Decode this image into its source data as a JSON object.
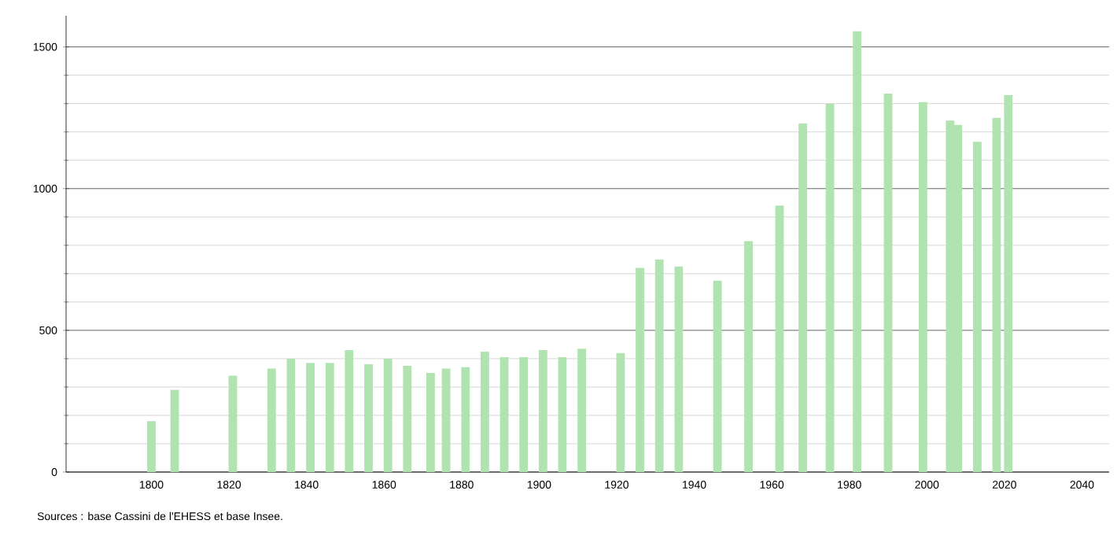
{
  "chart_data": {
    "type": "bar",
    "color": "#b0e3b0",
    "x": [
      1800,
      1806,
      1821,
      1831,
      1836,
      1841,
      1846,
      1851,
      1856,
      1861,
      1866,
      1872,
      1876,
      1881,
      1886,
      1891,
      1896,
      1901,
      1906,
      1911,
      1921,
      1926,
      1931,
      1936,
      1946,
      1954,
      1962,
      1968,
      1975,
      1982,
      1990,
      1999,
      2006,
      2008,
      2013,
      2018,
      2021
    ],
    "values": [
      180,
      290,
      340,
      365,
      400,
      385,
      385,
      430,
      380,
      400,
      375,
      350,
      365,
      370,
      425,
      405,
      405,
      430,
      405,
      435,
      420,
      720,
      750,
      725,
      675,
      815,
      940,
      1230,
      1300,
      1555,
      1335,
      1305,
      1240,
      1225,
      1165,
      1250,
      1330
    ],
    "xlim": [
      1778,
      2047
    ],
    "ylim": [
      0,
      1610
    ],
    "xticks": [
      1800,
      1820,
      1840,
      1860,
      1880,
      1900,
      1920,
      1940,
      1960,
      1980,
      2000,
      2020,
      2040
    ],
    "yticks": [
      0,
      500,
      1000,
      1500
    ],
    "grid": "y",
    "annotations": [
      "Sources : base Cassini de l'EHESS et base Insee."
    ]
  }
}
